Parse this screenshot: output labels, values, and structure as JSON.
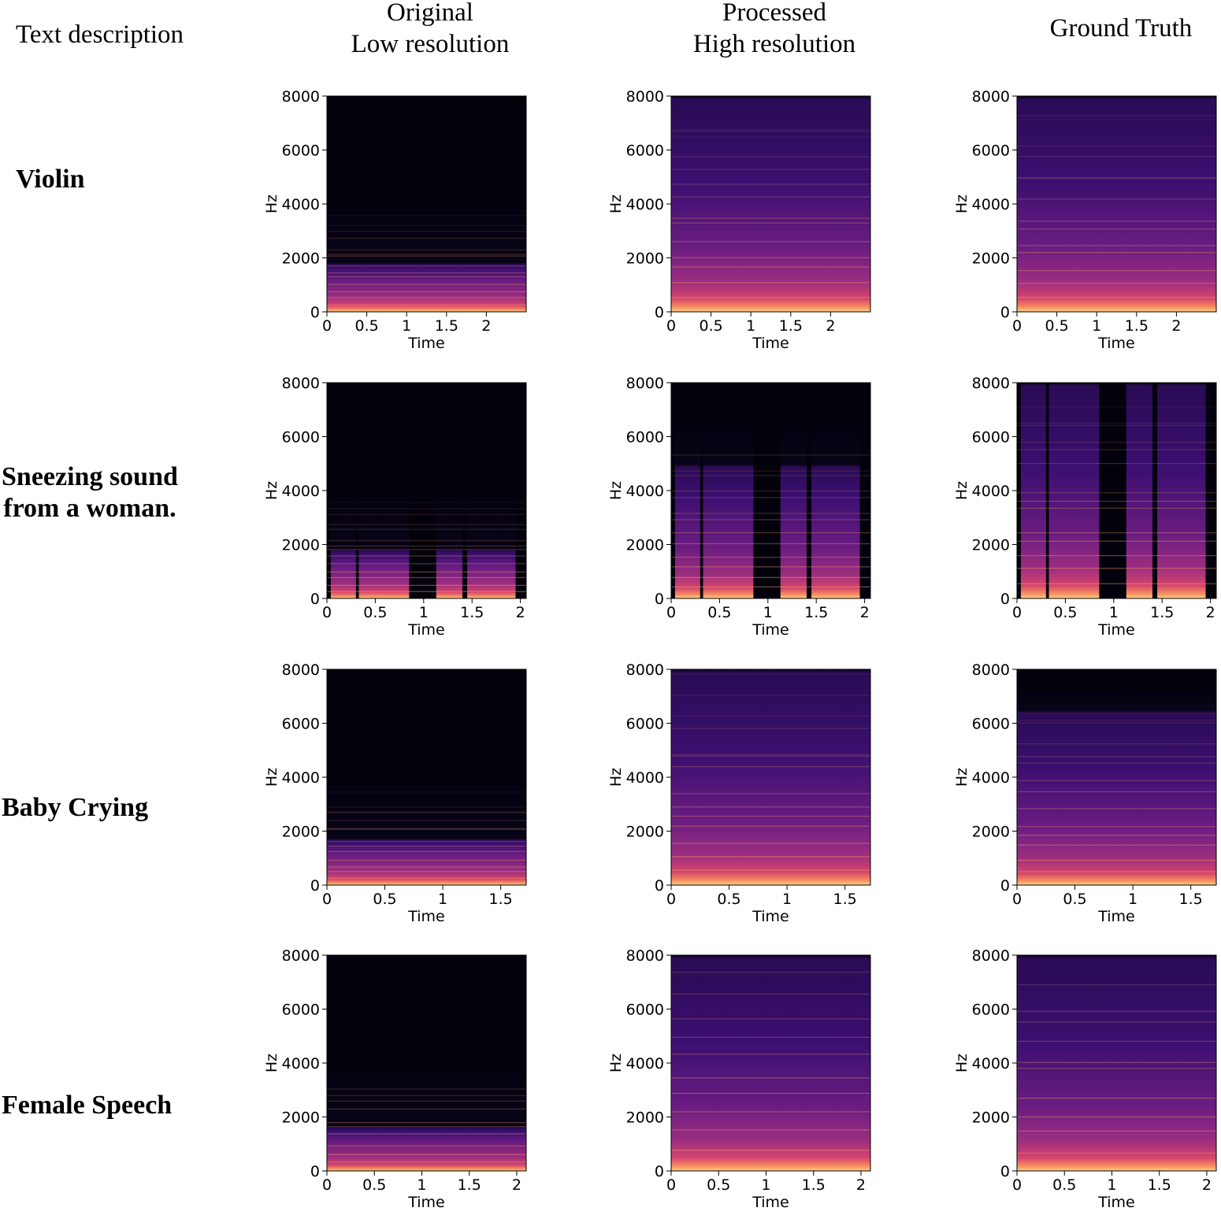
{
  "figure": {
    "text_description_header": "Text description",
    "columns": [
      {
        "line1": "Original",
        "line2": "Low resolution"
      },
      {
        "line1": "Processed",
        "line2": "High resolution"
      },
      {
        "line1": "Ground Truth",
        "line2": ""
      }
    ],
    "rows": [
      {
        "line1": "Violin",
        "line2": ""
      },
      {
        "line1": "Sneezing sound",
        "line2": "from a woman."
      },
      {
        "line1": "Baby Crying",
        "line2": ""
      },
      {
        "line1": "Female Speech",
        "line2": ""
      }
    ]
  },
  "chart_data": [
    {
      "type": "heatmap",
      "row": "Violin",
      "column": "Original Low resolution",
      "xlabel": "Time",
      "ylabel": "Hz",
      "ylim": [
        0,
        8000
      ],
      "xlim": [
        0,
        2.5
      ],
      "xticks": [
        "0",
        "0.5",
        "1",
        "1.5",
        "2"
      ],
      "yticks": [
        "0",
        "2000",
        "4000",
        "6000",
        "8000"
      ],
      "colormap": "magma",
      "bandlimit_hz": 3800
    },
    {
      "type": "heatmap",
      "row": "Violin",
      "column": "Processed High resolution",
      "xlabel": "Time",
      "ylabel": "Hz",
      "ylim": [
        0,
        8000
      ],
      "xlim": [
        0,
        2.5
      ],
      "xticks": [
        "0",
        "0.5",
        "1",
        "1.5",
        "2"
      ],
      "yticks": [
        "0",
        "2000",
        "4000",
        "6000",
        "8000"
      ],
      "colormap": "magma",
      "bandlimit_hz": 8000
    },
    {
      "type": "heatmap",
      "row": "Violin",
      "column": "Ground Truth",
      "xlabel": "Time",
      "ylabel": "Hz",
      "ylim": [
        0,
        8000
      ],
      "xlim": [
        0,
        2.5
      ],
      "xticks": [
        "0",
        "0.5",
        "1",
        "1.5",
        "2"
      ],
      "yticks": [
        "0",
        "2000",
        "4000",
        "6000",
        "8000"
      ],
      "colormap": "magma",
      "bandlimit_hz": 8000
    },
    {
      "type": "heatmap",
      "row": "Sneezing sound from a woman.",
      "column": "Original Low resolution",
      "xlabel": "Time",
      "ylabel": "Hz",
      "ylim": [
        0,
        8000
      ],
      "xlim": [
        0,
        2.06
      ],
      "xticks": [
        "0",
        "0.5",
        "1",
        "1.5",
        "2"
      ],
      "yticks": [
        "0",
        "2000",
        "4000",
        "6000",
        "8000"
      ],
      "colormap": "magma",
      "bandlimit_hz": 3800
    },
    {
      "type": "heatmap",
      "row": "Sneezing sound from a woman.",
      "column": "Processed High resolution",
      "xlabel": "Time",
      "ylabel": "Hz",
      "ylim": [
        0,
        8000
      ],
      "xlim": [
        0,
        2.06
      ],
      "xticks": [
        "0",
        "0.5",
        "1",
        "1.5",
        "2"
      ],
      "yticks": [
        "0",
        "2000",
        "4000",
        "6000",
        "8000"
      ],
      "colormap": "magma",
      "bandlimit_hz": 6300
    },
    {
      "type": "heatmap",
      "row": "Sneezing sound from a woman.",
      "column": "Ground Truth",
      "xlabel": "Time",
      "ylabel": "Hz",
      "ylim": [
        0,
        8000
      ],
      "xlim": [
        0,
        2.06
      ],
      "xticks": [
        "0",
        "0.5",
        "1",
        "1.5",
        "2"
      ],
      "yticks": [
        "0",
        "2000",
        "4000",
        "6000",
        "8000"
      ],
      "colormap": "magma",
      "bandlimit_hz": 8000
    },
    {
      "type": "heatmap",
      "row": "Baby Crying",
      "column": "Original Low resolution",
      "xlabel": "Time",
      "ylabel": "Hz",
      "ylim": [
        0,
        8000
      ],
      "xlim": [
        0,
        1.72
      ],
      "xticks": [
        "0",
        "0.5",
        "1",
        "1.5"
      ],
      "yticks": [
        "0",
        "2000",
        "4000",
        "6000",
        "8000"
      ],
      "colormap": "magma",
      "bandlimit_hz": 3700
    },
    {
      "type": "heatmap",
      "row": "Baby Crying",
      "column": "Processed High resolution",
      "xlabel": "Time",
      "ylabel": "Hz",
      "ylim": [
        0,
        8000
      ],
      "xlim": [
        0,
        1.72
      ],
      "xticks": [
        "0",
        "0.5",
        "1",
        "1.5"
      ],
      "yticks": [
        "0",
        "2000",
        "4000",
        "6000",
        "8000"
      ],
      "colormap": "magma",
      "bandlimit_hz": 8000
    },
    {
      "type": "heatmap",
      "row": "Baby Crying",
      "column": "Ground Truth",
      "xlabel": "Time",
      "ylabel": "Hz",
      "ylim": [
        0,
        8000
      ],
      "xlim": [
        0,
        1.72
      ],
      "xticks": [
        "0",
        "0.5",
        "1",
        "1.5"
      ],
      "yticks": [
        "0",
        "2000",
        "4000",
        "6000",
        "8000"
      ],
      "colormap": "magma",
      "bandlimit_hz": 7200
    },
    {
      "type": "heatmap",
      "row": "Female Speech",
      "column": "Original Low resolution",
      "xlabel": "Time",
      "ylabel": "Hz",
      "ylim": [
        0,
        8000
      ],
      "xlim": [
        0,
        2.1
      ],
      "xticks": [
        "0",
        "0.5",
        "1",
        "1.5",
        "2"
      ],
      "yticks": [
        "0",
        "2000",
        "4000",
        "6000",
        "8000"
      ],
      "colormap": "magma",
      "bandlimit_hz": 3600
    },
    {
      "type": "heatmap",
      "row": "Female Speech",
      "column": "Processed High resolution",
      "xlabel": "Time",
      "ylabel": "Hz",
      "ylim": [
        0,
        8000
      ],
      "xlim": [
        0,
        2.1
      ],
      "xticks": [
        "0",
        "0.5",
        "1",
        "1.5",
        "2"
      ],
      "yticks": [
        "0",
        "2000",
        "4000",
        "6000",
        "8000"
      ],
      "colormap": "magma",
      "bandlimit_hz": 8000
    },
    {
      "type": "heatmap",
      "row": "Female Speech",
      "column": "Ground Truth",
      "xlabel": "Time",
      "ylabel": "Hz",
      "ylim": [
        0,
        8000
      ],
      "xlim": [
        0,
        2.1
      ],
      "xticks": [
        "0",
        "0.5",
        "1",
        "1.5",
        "2"
      ],
      "yticks": [
        "0",
        "2000",
        "4000",
        "6000",
        "8000"
      ],
      "colormap": "magma",
      "bandlimit_hz": 8000
    }
  ]
}
